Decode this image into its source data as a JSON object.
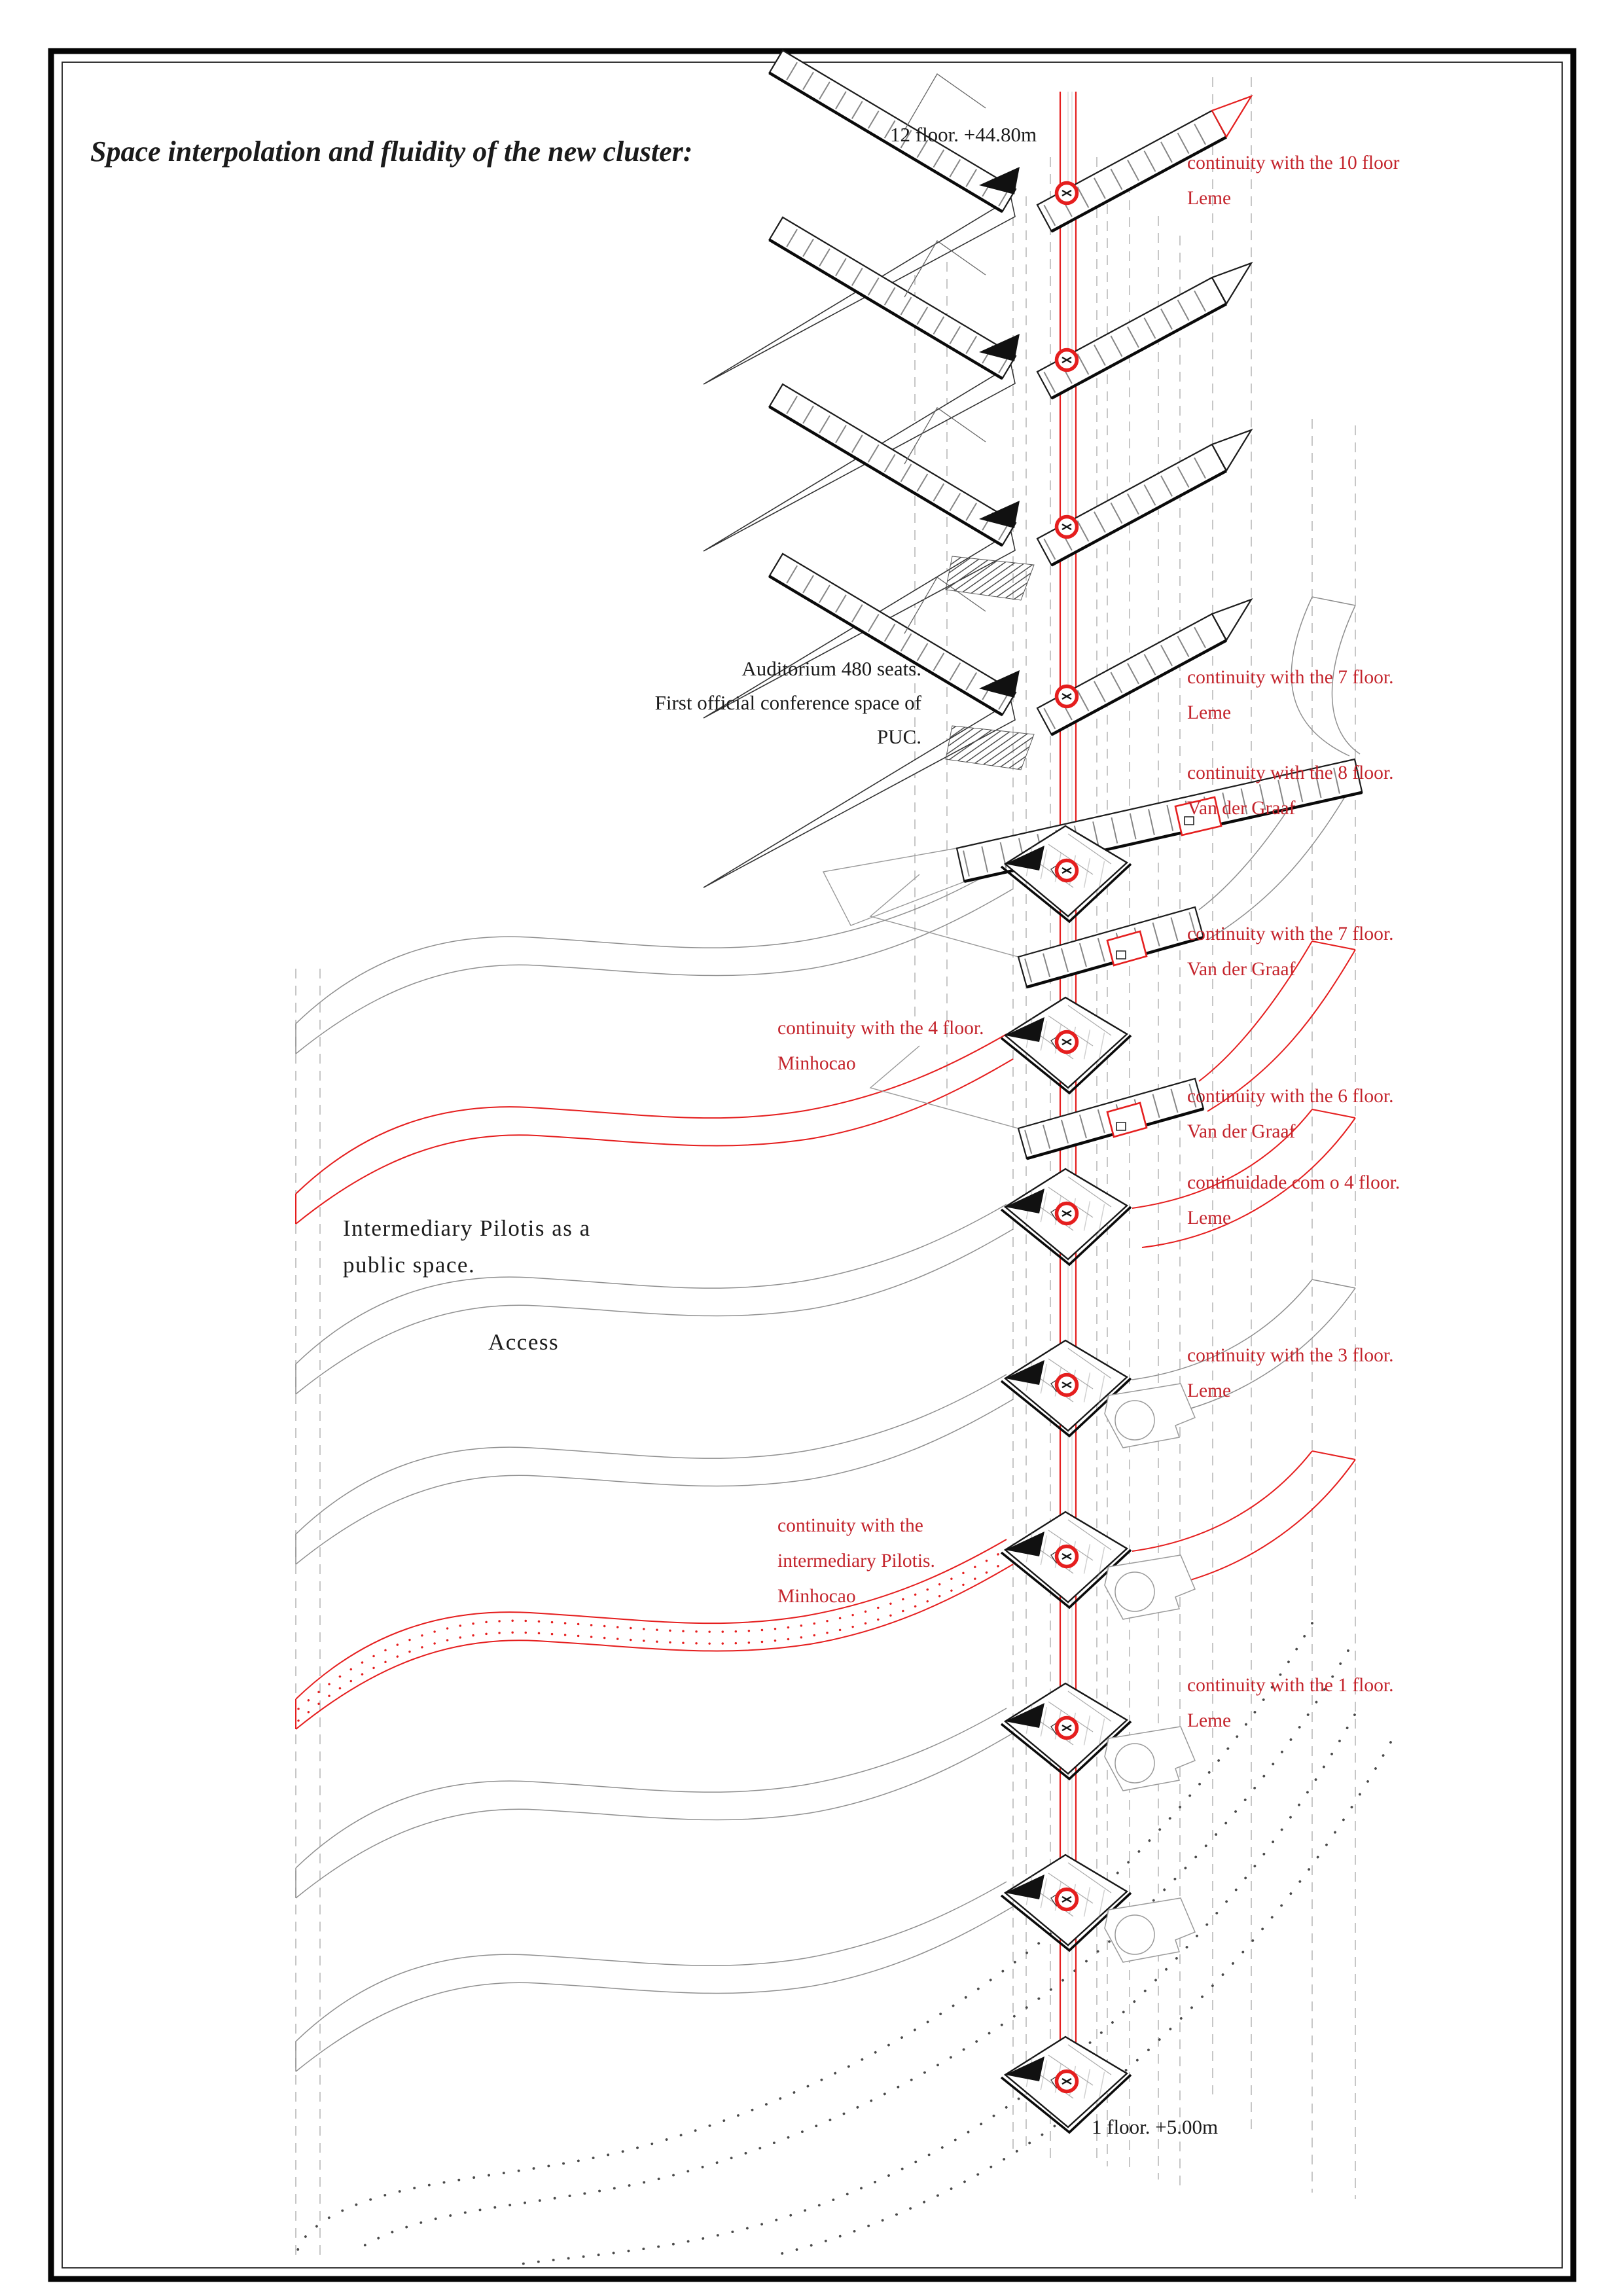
{
  "page": {
    "title": "Space interpolation and fluidity of the new cluster:"
  },
  "colors": {
    "paper": "#ffffff",
    "ink": "#1b1b1b",
    "drawing_gray": "#8f8f8f",
    "line_red": "#e51e1e",
    "text_red": "#c4242c"
  },
  "annotations": [
    {
      "id": "title",
      "text": "Space interpolation and fluidity of the new cluster:"
    },
    {
      "id": "floor-12-elevation",
      "text": "12 floor. +44.80m"
    },
    {
      "id": "note-10-floor-line1",
      "text": "continuity with the 10 floor"
    },
    {
      "id": "note-10-floor-line2",
      "text": "Leme"
    },
    {
      "id": "auditorium-line1",
      "text": "Auditorium 480 seats."
    },
    {
      "id": "auditorium-line2",
      "text": "First official conference space of"
    },
    {
      "id": "auditorium-line3",
      "text": "PUC."
    },
    {
      "id": "note-7-floor-leme-line1",
      "text": "continuity with the 7 floor."
    },
    {
      "id": "note-7-floor-leme-line2",
      "text": "Leme"
    },
    {
      "id": "note-8-floor-line1",
      "text": "continuity with the 8 floor."
    },
    {
      "id": "note-8-floor-line2",
      "text": "Van der Graaf"
    },
    {
      "id": "note-7-floor-vdg-line1",
      "text": "continuity with the 7 floor."
    },
    {
      "id": "note-7-floor-vdg-line2",
      "text": "Van der Graaf"
    },
    {
      "id": "note-4-floor-line1",
      "text": "continuity with the 4 floor."
    },
    {
      "id": "note-4-floor-line2",
      "text": "Minhocao"
    },
    {
      "id": "note-6-floor-line1",
      "text": "continuity with the 6 floor."
    },
    {
      "id": "note-6-floor-line2",
      "text": "Van der Graaf"
    },
    {
      "id": "note-4-floor-leme-line1",
      "text": "continuidade com o 4 floor."
    },
    {
      "id": "note-4-floor-leme-line2",
      "text": "Leme"
    },
    {
      "id": "pilotis-line1",
      "text": "Intermediary Pilotis as a"
    },
    {
      "id": "pilotis-line2",
      "text": "public space."
    },
    {
      "id": "access",
      "text": "Access"
    },
    {
      "id": "note-3-floor-line1",
      "text": "continuity with the 3 floor."
    },
    {
      "id": "note-3-floor-line2",
      "text": "Leme"
    },
    {
      "id": "note-int-pilotis-line1",
      "text": "continuity with the"
    },
    {
      "id": "note-int-pilotis-line2",
      "text": "intermediary Pilotis."
    },
    {
      "id": "note-int-pilotis-line3",
      "text": "Minhocao"
    },
    {
      "id": "note-1-floor-line1",
      "text": "continuity with the 1 floor."
    },
    {
      "id": "note-1-floor-line2",
      "text": "Leme"
    },
    {
      "id": "floor-1-elevation",
      "text": "1 floor. +5.00m"
    }
  ]
}
